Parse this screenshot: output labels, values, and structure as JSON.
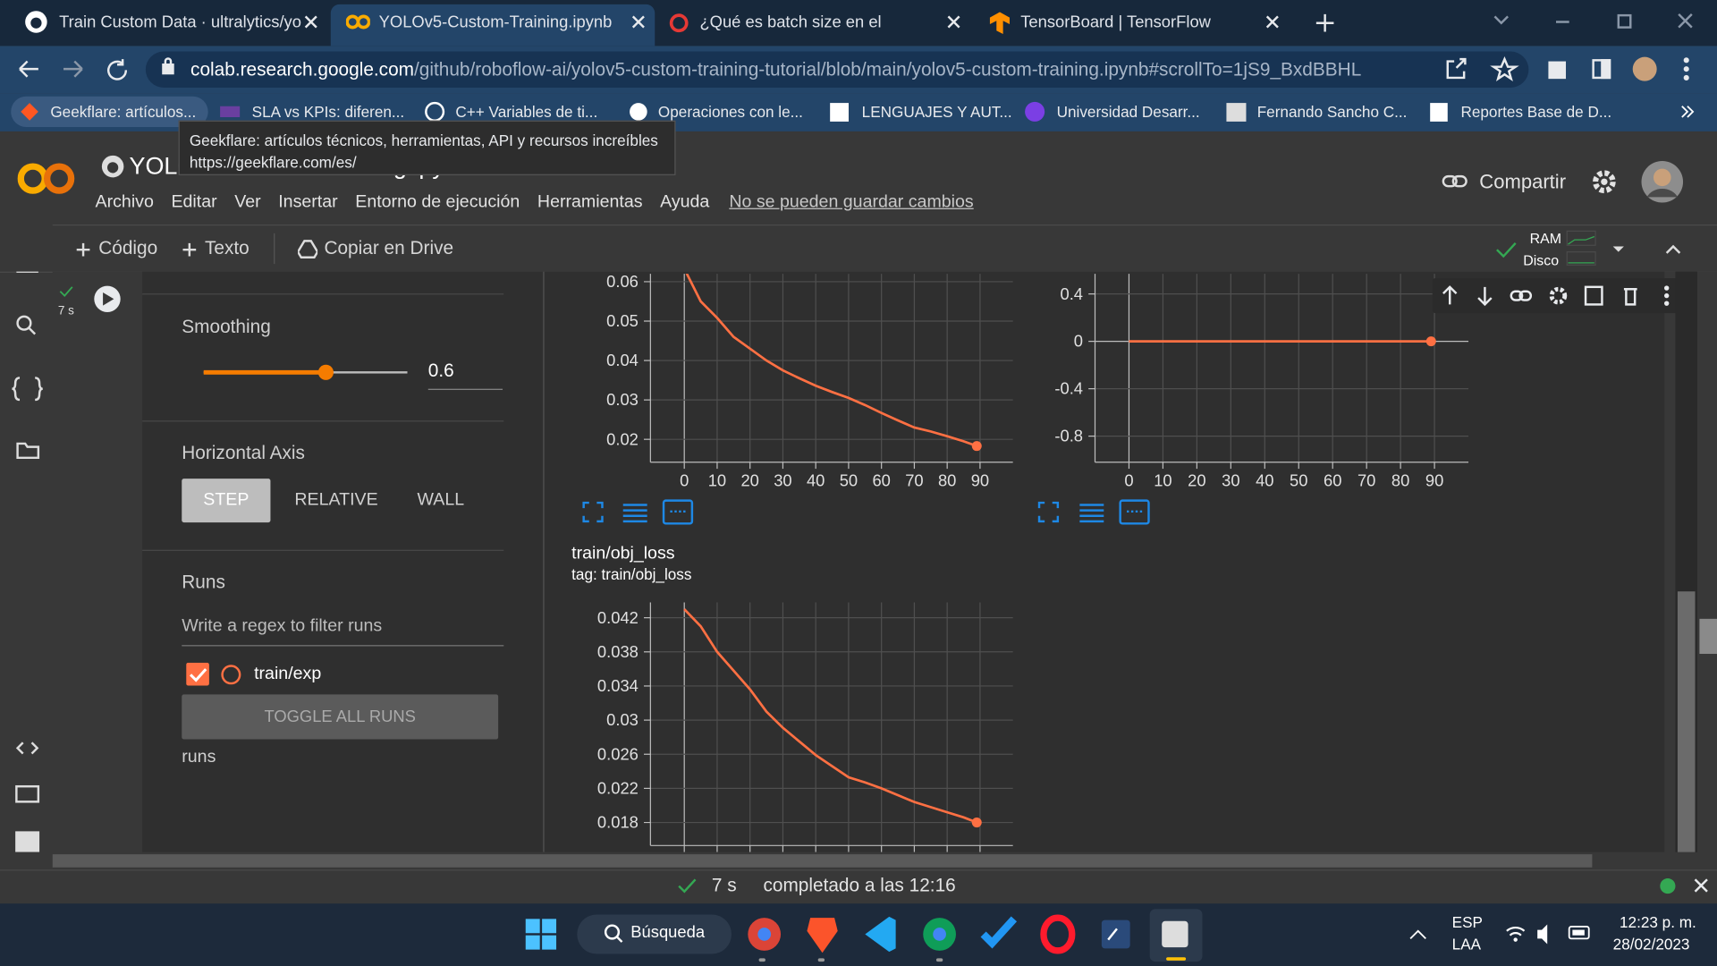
{
  "browser": {
    "tabs": [
      "Train Custom Data · ultralytics/yo",
      "YOLOv5-Custom-Training.ipynb -",
      "¿Qué es batch size en el aprendiz",
      "TensorBoard | TensorFlow"
    ],
    "url": {
      "host": "colab.research.google.com",
      "path": "/github/roboflow-ai/yolov5-custom-training-tutorial/blob/main/yolov5-custom-training.ipynb#scrollTo=1jS9_BxdBBHL"
    },
    "bookmarks": [
      "Geekflare: artículos...",
      "SLA vs KPIs: diferen...",
      "C++ Variables de ti...",
      "Operaciones con le...",
      "LENGUAJES Y AUT...",
      "Universidad Desarr...",
      "Fernando Sancho C...",
      "Reportes Base de D..."
    ],
    "tooltip": {
      "title": "Geekflare: artículos técnicos, herramientas, API y recursos increíbles",
      "url": "https://geekflare.com/es/"
    }
  },
  "colab": {
    "notebook_title": "YOLOv5-Custom-Training.ipynb",
    "menu": [
      "Archivo",
      "Editar",
      "Ver",
      "Insertar",
      "Entorno de ejecución",
      "Herramientas",
      "Ayuda"
    ],
    "unsaved": "No se pueden guardar cambios",
    "share": "Compartir",
    "toolbar": [
      "Código",
      "Texto"
    ],
    "copy_drive": "Copiar en Drive",
    "ram": "RAM",
    "disk": "Disco",
    "cell_time": "7 s"
  },
  "tensorboard": {
    "smoothing_label": "Smoothing",
    "smoothing": 0.6,
    "horizontal_axis": "Horizontal Axis",
    "axis_options": [
      "STEP",
      "RELATIVE",
      "WALL"
    ],
    "runs_label": "Runs",
    "filter_placeholder": "Write a regex to filter runs",
    "run": "train/exp",
    "toggle": "TOGGLE ALL RUNS",
    "runs_footer": "runs"
  },
  "charts": [
    {
      "type": "line",
      "xlim": [
        -10.3,
        100
      ],
      "ylim": [
        0.0142,
        0.062
      ],
      "xticks": [
        0,
        10,
        20,
        30,
        40,
        50,
        60,
        70,
        80,
        90
      ],
      "yticks": [
        0.02,
        0.03,
        0.04,
        0.05,
        0.06
      ],
      "x": [
        0,
        5,
        10,
        15,
        20,
        25,
        30,
        35,
        40,
        45,
        50,
        55,
        60,
        65,
        70,
        75,
        80,
        85,
        89
      ],
      "series": [
        {
          "color": "#ff7043",
          "values": [
            0.0633,
            0.055,
            0.0508,
            0.046,
            0.043,
            0.04,
            0.0375,
            0.0355,
            0.0336,
            0.032,
            0.0305,
            0.0287,
            0.0267,
            0.0248,
            0.023,
            0.022,
            0.0208,
            0.0195,
            0.0183
          ]
        }
      ]
    },
    {
      "type": "line",
      "xlim": [
        -10,
        100
      ],
      "ylim": [
        -1.02,
        0.57
      ],
      "xticks": [
        0,
        10,
        20,
        30,
        40,
        50,
        60,
        70,
        80,
        90
      ],
      "yticks": [
        0.4,
        0,
        -0.4,
        -0.8
      ],
      "x": [
        0,
        10,
        20,
        30,
        40,
        50,
        60,
        70,
        80,
        89
      ],
      "series": [
        {
          "color": "#ff7043",
          "values": [
            0,
            0,
            0,
            0,
            0,
            0,
            0,
            0,
            0,
            0
          ]
        }
      ]
    },
    {
      "type": "line",
      "title": "train/obj_loss",
      "tag": "tag: train/obj_loss",
      "xlim": [
        -10.3,
        100
      ],
      "ylim": [
        0.0153,
        0.0438
      ],
      "xticks": [
        0,
        10,
        20,
        30,
        40,
        50,
        60,
        70,
        80,
        90
      ],
      "yticks": [
        0.018,
        0.022,
        0.026,
        0.03,
        0.034,
        0.038,
        0.042
      ],
      "x": [
        0,
        5,
        10,
        15,
        20,
        25,
        30,
        35,
        40,
        45,
        50,
        55,
        60,
        65,
        70,
        75,
        80,
        85,
        89
      ],
      "series": [
        {
          "color": "#ff7043",
          "values": [
            0.043,
            0.041,
            0.038,
            0.0358,
            0.0336,
            0.031,
            0.0291,
            0.0275,
            0.0259,
            0.0246,
            0.0233,
            0.0227,
            0.022,
            0.0212,
            0.0204,
            0.0198,
            0.0192,
            0.0186,
            0.018
          ]
        }
      ]
    }
  ],
  "status": {
    "time": "7 s",
    "message": "completado a las 12:16"
  },
  "taskbar": {
    "search": "Búsqueda",
    "lang": "ESP",
    "region": "LAA",
    "time": "12:23 p. m.",
    "date": "28/02/2023"
  }
}
